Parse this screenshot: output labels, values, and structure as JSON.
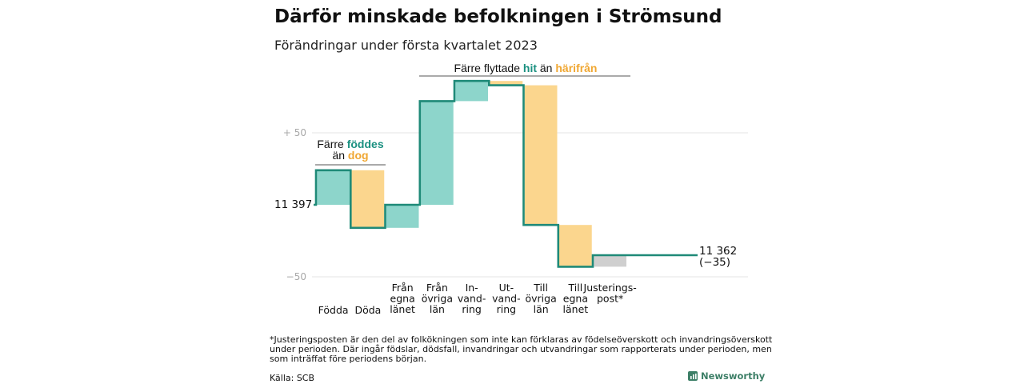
{
  "chart_data": {
    "type": "waterfall",
    "title": "Därför minskade befolkningen i Strömsund",
    "subtitle": "Förändringar under första kvartalet 2023",
    "start_value": 11397,
    "start_label": "11 397",
    "end_value": 11362,
    "end_label_line1": "11 362",
    "end_label_line2": "(−35)",
    "y_ticks": [
      {
        "label": "+ 50",
        "value": 50
      },
      {
        "label": "−50",
        "value": -50
      }
    ],
    "colors": {
      "positive": "#8dd5cb",
      "negative": "#fbd68e",
      "adjustment": "#cfcfcf",
      "line": "#1f8a78",
      "hit_text": "#1a9080",
      "harifran_text": "#f0a732"
    },
    "steps": [
      {
        "lines": [
          "Födda"
        ],
        "value": 24,
        "kind": "positive"
      },
      {
        "lines": [
          "Döda"
        ],
        "value": -40,
        "kind": "negative"
      },
      {
        "lines": [
          "Från",
          "egna",
          "länet"
        ],
        "value": 16,
        "kind": "positive"
      },
      {
        "lines": [
          "Från",
          "övriga",
          "län"
        ],
        "value": 72,
        "kind": "positive"
      },
      {
        "lines": [
          "In-",
          "vand-",
          "ring"
        ],
        "value": 14,
        "kind": "positive"
      },
      {
        "lines": [
          "Ut-",
          "vand-",
          "ring"
        ],
        "value": -3,
        "kind": "negative"
      },
      {
        "lines": [
          "Till",
          "övriga",
          "län"
        ],
        "value": -97,
        "kind": "negative"
      },
      {
        "lines": [
          "Till",
          "egna",
          "länet"
        ],
        "value": -29,
        "kind": "negative"
      },
      {
        "lines": [
          "Justerings-",
          "post*"
        ],
        "value": 8,
        "kind": "adjustment"
      }
    ],
    "annotations": {
      "births_line1_prefix": "Färre ",
      "births_line1_highlight": "föddes",
      "births_line2_prefix": "än ",
      "births_line2_highlight": "dog",
      "migration_prefix": "Färre flyttade ",
      "migration_highlight1": "hit",
      "migration_middle": " än ",
      "migration_highlight2": "härifrån"
    }
  },
  "footnote": [
    "*Justeringsposten är den del av folkökningen som inte kan förklaras av födelseöverskott och invandringsöverskott",
    "under perioden. Där ingår födslar, dödsfall, invandringar och utvandringar som rapporterats under perioden, men",
    "som inträffat före periodens början."
  ],
  "source": "Källa: SCB",
  "brand": "Newsworthy"
}
